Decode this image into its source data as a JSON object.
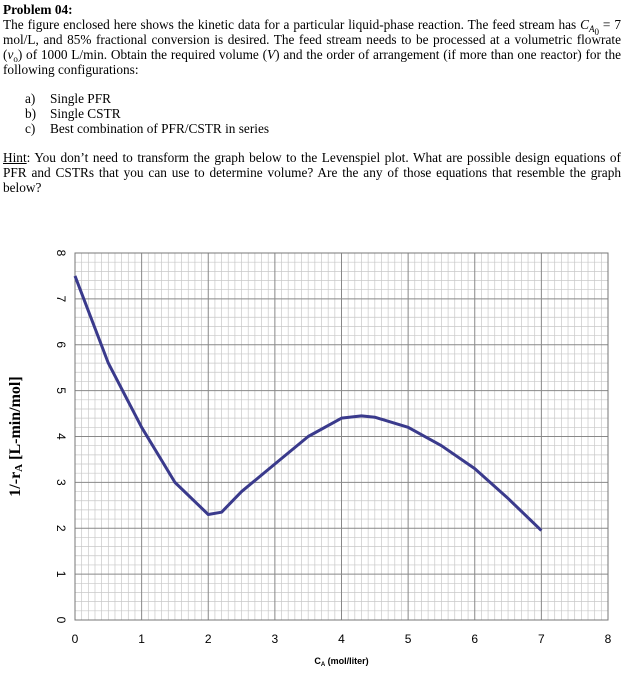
{
  "problem": {
    "title": "Problem 04:",
    "intro": [
      "The figure enclosed here shows the kinetic data for a particular liquid-phase reaction. The feed stream has ",
      "C",
      "A",
      "0",
      " = 7 mol/L, and 85% fractional conversion is desired. The feed stream needs to be processed at a volumetric flowrate (",
      "v",
      "o",
      ") of 1000 L/min. Obtain the required volume (",
      "V",
      ") and the order of arrangement (if more than one reactor) for the following configurations:"
    ],
    "options": [
      {
        "marker": "a)",
        "text": "Single PFR"
      },
      {
        "marker": "b)",
        "text": "Single CSTR"
      },
      {
        "marker": "c)",
        "text": "Best combination of PFR/CSTR in series"
      }
    ],
    "hint": {
      "label": "Hint",
      "text": ": You don’t need to transform the graph below to the Levenspiel plot. What are possible design equations of PFR and CSTRs that you can use to determine volume? Are the any of those equations that resemble the graph below?"
    }
  },
  "chart_data": {
    "type": "line",
    "x_label": [
      "C",
      "A",
      " (mol/liter)"
    ],
    "y_label": [
      "1/-r",
      "A",
      " [L-min/mol]"
    ],
    "x": [
      0,
      0.5,
      1,
      1.5,
      2,
      2.2,
      2.5,
      3,
      3.5,
      4,
      4.3,
      4.5,
      5,
      5.5,
      6,
      6.5,
      7
    ],
    "series": [
      {
        "color": "#3a3a8c",
        "values": [
          7.5,
          5.6,
          4.2,
          3.0,
          2.3,
          2.35,
          2.8,
          3.4,
          4.0,
          4.4,
          4.45,
          4.42,
          4.2,
          3.8,
          3.3,
          2.65,
          1.95
        ]
      }
    ],
    "xlim": [
      0,
      8
    ],
    "ylim": [
      0,
      8
    ],
    "xticks": [
      0,
      1,
      2,
      3,
      4,
      5,
      6,
      7,
      8
    ],
    "yticks": [
      0,
      1,
      2,
      3,
      4,
      5,
      6,
      7,
      8
    ],
    "grid": true
  }
}
